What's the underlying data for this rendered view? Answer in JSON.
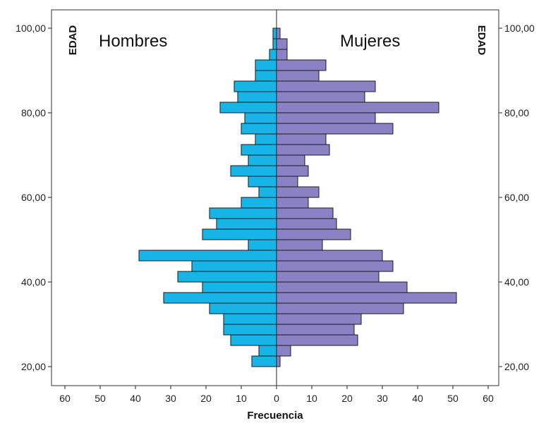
{
  "chart_data": {
    "type": "bar",
    "orientation": "horizontal",
    "subtype": "population-pyramid",
    "xlabel": "Frecuencia",
    "ylabel_left": "EDAD",
    "ylabel_right": "EDAD",
    "xlim": [
      -60,
      60
    ],
    "ylim": [
      15,
      105
    ],
    "x_ticks": [
      -60,
      -50,
      -40,
      -30,
      -20,
      -10,
      0,
      10,
      20,
      30,
      40,
      50,
      60
    ],
    "x_tick_labels": [
      "60",
      "50",
      "40",
      "30",
      "20",
      "10",
      "0",
      "10",
      "20",
      "30",
      "40",
      "50",
      "60"
    ],
    "y_ticks": [
      20,
      40,
      60,
      80,
      100
    ],
    "y_tick_labels": [
      "20,00",
      "40,00",
      "60,00",
      "80,00",
      "100,00"
    ],
    "bin_width": 2.5,
    "ages": [
      21.25,
      23.75,
      26.25,
      28.75,
      31.25,
      33.75,
      36.25,
      38.75,
      41.25,
      43.75,
      46.25,
      48.75,
      51.25,
      53.75,
      56.25,
      58.75,
      61.25,
      63.75,
      66.25,
      68.75,
      71.25,
      73.75,
      76.25,
      78.75,
      81.25,
      83.75,
      86.25,
      88.75,
      91.25,
      93.75,
      96.25,
      98.75
    ],
    "series": [
      {
        "name": "Hombres",
        "color": "#17b4e8",
        "side": "left",
        "values": [
          7,
          5,
          13,
          15,
          15,
          19,
          32,
          21,
          28,
          24,
          39,
          8,
          21,
          17,
          19,
          10,
          5,
          8,
          13,
          8,
          10,
          6,
          10,
          9,
          16,
          11,
          12,
          6,
          6,
          2,
          1,
          1
        ]
      },
      {
        "name": "Mujeres",
        "color": "#8b82c6",
        "side": "right",
        "values": [
          1,
          4,
          23,
          22,
          24,
          36,
          51,
          37,
          29,
          33,
          30,
          13,
          21,
          17,
          16,
          9,
          12,
          6,
          9,
          8,
          15,
          14,
          33,
          28,
          46,
          25,
          28,
          12,
          14,
          3,
          3,
          1
        ]
      }
    ]
  }
}
